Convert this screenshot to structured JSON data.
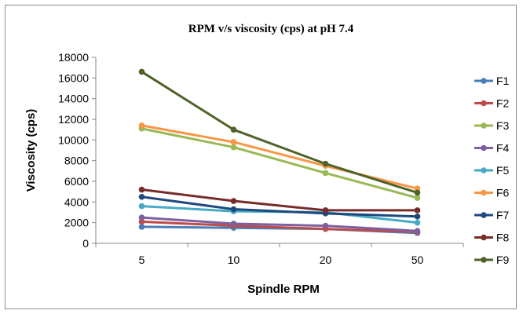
{
  "chart_data": {
    "type": "line",
    "title": "RPM v/s viscosity (cps) at pH 7.4",
    "xlabel": "Spindle RPM",
    "ylabel": "Viscosity (cps)",
    "categories": [
      "5",
      "10",
      "20",
      "50"
    ],
    "ylim": [
      0,
      18000
    ],
    "yticks": [
      0,
      2000,
      4000,
      6000,
      8000,
      10000,
      12000,
      14000,
      16000,
      18000
    ],
    "grid": false,
    "legend_position": "right",
    "series": [
      {
        "name": "F1",
        "color": "#4a7ebb",
        "values": [
          1600,
          1500,
          1400,
          1000
        ]
      },
      {
        "name": "F2",
        "color": "#be4b48",
        "values": [
          2100,
          1700,
          1400,
          1100
        ]
      },
      {
        "name": "F3",
        "color": "#98b954",
        "values": [
          11100,
          9300,
          6800,
          4400
        ]
      },
      {
        "name": "F4",
        "color": "#7d60a0",
        "values": [
          2500,
          1900,
          1700,
          1200
        ]
      },
      {
        "name": "F5",
        "color": "#46aac5",
        "values": [
          3600,
          3100,
          3000,
          2000
        ]
      },
      {
        "name": "F6",
        "color": "#f79646",
        "values": [
          11400,
          9800,
          7500,
          5300
        ]
      },
      {
        "name": "F7",
        "color": "#1f497d",
        "values": [
          4500,
          3300,
          2900,
          2600
        ]
      },
      {
        "name": "F8",
        "color": "#772c2a",
        "values": [
          5200,
          4100,
          3200,
          3200
        ]
      },
      {
        "name": "F9",
        "color": "#4f6228",
        "values": [
          16600,
          11000,
          7700,
          4900
        ]
      }
    ]
  }
}
